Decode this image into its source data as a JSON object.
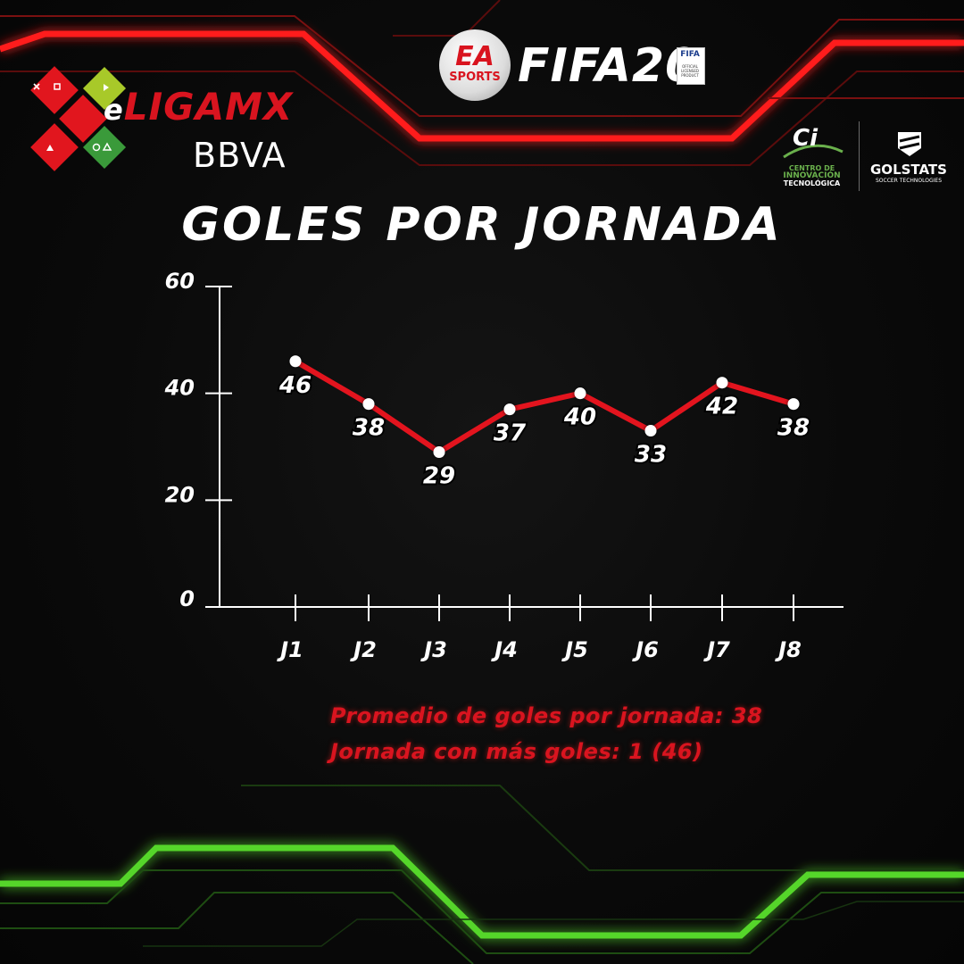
{
  "header": {
    "eliga_prefix": "e",
    "eliga_main": "LIGA",
    "eliga_suffix": "MX",
    "sponsor": "BBVA",
    "ea_logo": "EA",
    "ea_sports": "SPORTS",
    "game_title": "FIFA20",
    "fifa_badge": "FIFA",
    "fifa_badge_sub": "OFFICIAL LICENSED PRODUCT",
    "cit_mark": "Ci",
    "cit_line1": "CENTRO DE",
    "cit_line2": "INNOVACIÓN",
    "cit_line3": "TECNOLÓGICA",
    "golstats": "GOLSTATS",
    "golstats_sub": "SOCCER TECHNOLOGIES"
  },
  "colors": {
    "line": "#e3141e",
    "accent_red": "#d9141f",
    "accent_green": "#55d62a",
    "axis": "#ffffff",
    "text": "#ffffff"
  },
  "icons": [
    "controller-cross-icon",
    "controller-square-icon",
    "controller-triangle-icon",
    "controller-circle-icon",
    "golstats-shield-icon"
  ],
  "chart_data": {
    "type": "line",
    "title": "GOLES POR JORNADA",
    "categories": [
      "J1",
      "J2",
      "J3",
      "J4",
      "J5",
      "J6",
      "J7",
      "J8"
    ],
    "values": [
      46,
      38,
      29,
      37,
      40,
      33,
      42,
      38
    ],
    "yticks": [
      0,
      20,
      40,
      60
    ],
    "ylim": [
      0,
      60
    ],
    "grid": false,
    "legend": "none",
    "data_labels": true
  },
  "summary": {
    "average": "Promedio de goles por jornada: 38",
    "max_round": "Jornada con más goles: 1 (46)"
  }
}
